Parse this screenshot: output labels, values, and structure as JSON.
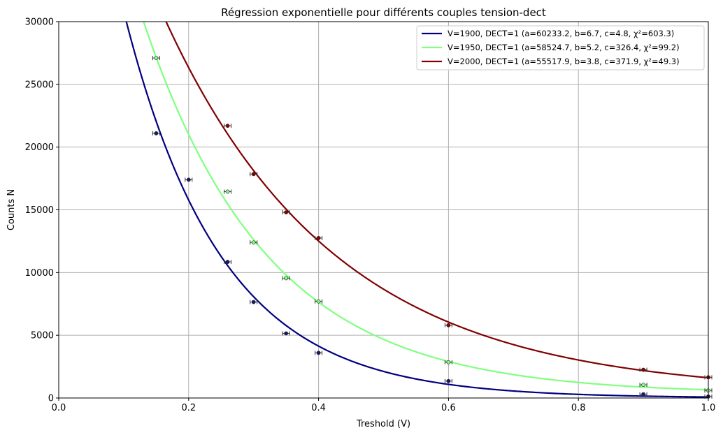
{
  "chart_data": {
    "type": "scatter",
    "title": "Régression exponentielle pour différents couples tension-dect",
    "xlabel": "Treshold (V)",
    "ylabel": "Counts N",
    "xlim": [
      0.0,
      1.0
    ],
    "ylim": [
      0,
      30000
    ],
    "x_ticks": [
      "0.0",
      "0.2",
      "0.4",
      "0.6",
      "0.8",
      "1.0"
    ],
    "y_ticks": [
      "0",
      "5000",
      "10000",
      "15000",
      "20000",
      "25000",
      "30000"
    ],
    "grid": true,
    "legend_position": "top-right",
    "model": "y = a·exp(−b·x) + c",
    "series": [
      {
        "name": "V=1900, DECT=1 (a=60233.2, b=6.7, c=4.8, χ²=603.3)",
        "color": "#000080",
        "marker_color": "#191970",
        "fit": {
          "a": 60233.2,
          "b": 6.7,
          "c": 4.8
        },
        "points": [
          {
            "x": 0.15,
            "y": 21100
          },
          {
            "x": 0.2,
            "y": 17400
          },
          {
            "x": 0.26,
            "y": 10850
          },
          {
            "x": 0.3,
            "y": 7650
          },
          {
            "x": 0.35,
            "y": 5150
          },
          {
            "x": 0.4,
            "y": 3600
          },
          {
            "x": 0.6,
            "y": 1350
          },
          {
            "x": 0.9,
            "y": 300
          },
          {
            "x": 1.0,
            "y": 120
          }
        ]
      },
      {
        "name": "V=1950, DECT=1 (a=58524.7, b=5.2, c=326.4, χ²=99.2)",
        "color": "#80ff80",
        "marker_color": "#80ff80",
        "fit": {
          "a": 58524.7,
          "b": 5.2,
          "c": 326.4
        },
        "points": [
          {
            "x": 0.15,
            "y": 27100
          },
          {
            "x": 0.26,
            "y": 16450
          },
          {
            "x": 0.3,
            "y": 12400
          },
          {
            "x": 0.35,
            "y": 9550
          },
          {
            "x": 0.4,
            "y": 7700
          },
          {
            "x": 0.6,
            "y": 2850
          },
          {
            "x": 0.9,
            "y": 1050
          },
          {
            "x": 1.0,
            "y": 600
          }
        ]
      },
      {
        "name": "V=2000, DECT=1 (a=55517.9, b=3.8, c=371.9, χ²=49.3)",
        "color": "#800000",
        "marker_color": "#8b0000",
        "fit": {
          "a": 55517.9,
          "b": 3.8,
          "c": 371.9
        },
        "points": [
          {
            "x": 0.26,
            "y": 21700
          },
          {
            "x": 0.3,
            "y": 17850
          },
          {
            "x": 0.35,
            "y": 14800
          },
          {
            "x": 0.4,
            "y": 12750
          },
          {
            "x": 0.6,
            "y": 5800
          },
          {
            "x": 0.9,
            "y": 2250
          },
          {
            "x": 1.0,
            "y": 1650
          }
        ]
      }
    ]
  }
}
